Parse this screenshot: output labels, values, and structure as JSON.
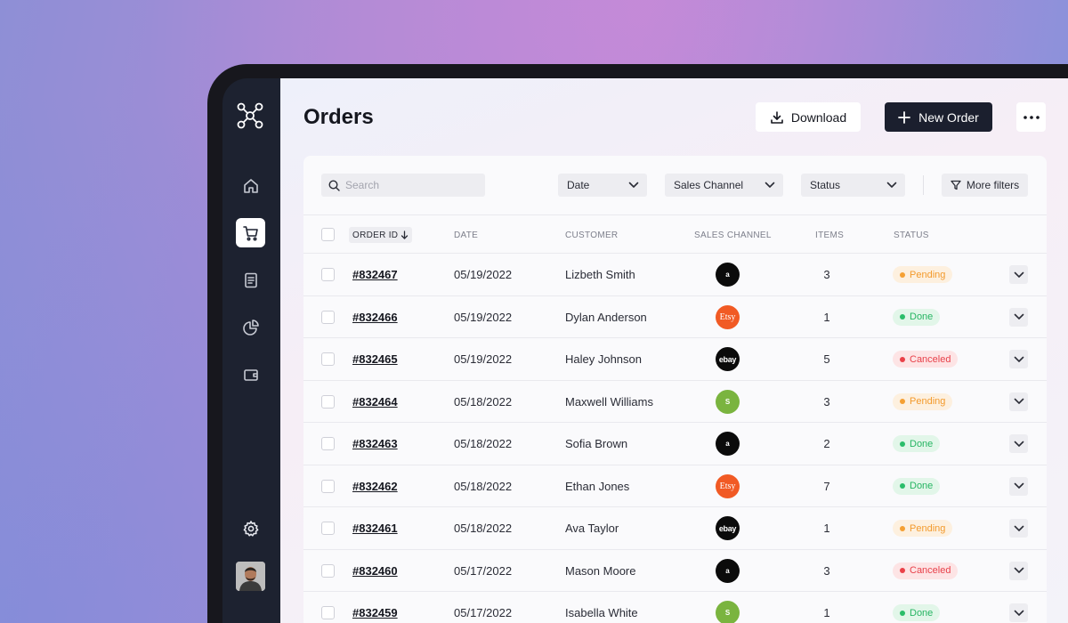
{
  "page": {
    "title": "Orders"
  },
  "actions": {
    "download_label": "Download",
    "new_order_label": "New Order"
  },
  "filters": {
    "search_placeholder": "Search",
    "date_label": "Date",
    "sales_channel_label": "Sales Channel",
    "status_label": "Status",
    "more_filters_label": "More filters"
  },
  "table": {
    "columns": {
      "order_id": "ORDER ID",
      "date": "DATE",
      "customer": "CUSTOMER",
      "sales_channel": "SALES CHANNEL",
      "items": "ITEMS",
      "status": "STATUS"
    },
    "rows": [
      {
        "order_id": "#832467",
        "date": "05/19/2022",
        "customer": "Lizbeth Smith",
        "channel": "amazon",
        "items": "3",
        "status": "Pending"
      },
      {
        "order_id": "#832466",
        "date": "05/19/2022",
        "customer": "Dylan Anderson",
        "channel": "etsy",
        "items": "1",
        "status": "Done"
      },
      {
        "order_id": "#832465",
        "date": "05/19/2022",
        "customer": "Haley Johnson",
        "channel": "ebay",
        "items": "5",
        "status": "Canceled"
      },
      {
        "order_id": "#832464",
        "date": "05/18/2022",
        "customer": "Maxwell Williams",
        "channel": "shopify",
        "items": "3",
        "status": "Pending"
      },
      {
        "order_id": "#832463",
        "date": "05/18/2022",
        "customer": "Sofia Brown",
        "channel": "amazon",
        "items": "2",
        "status": "Done"
      },
      {
        "order_id": "#832462",
        "date": "05/18/2022",
        "customer": "Ethan Jones",
        "channel": "etsy",
        "items": "7",
        "status": "Done"
      },
      {
        "order_id": "#832461",
        "date": "05/18/2022",
        "customer": "Ava Taylor",
        "channel": "ebay",
        "items": "1",
        "status": "Pending"
      },
      {
        "order_id": "#832460",
        "date": "05/17/2022",
        "customer": "Mason Moore",
        "channel": "amazon",
        "items": "3",
        "status": "Canceled"
      },
      {
        "order_id": "#832459",
        "date": "05/17/2022",
        "customer": "Isabella White",
        "channel": "shopify",
        "items": "1",
        "status": "Done"
      }
    ]
  },
  "channel_logos": {
    "amazon": "a",
    "etsy": "Etsy",
    "ebay": "ebay",
    "shopify": "S"
  },
  "sidebar": {
    "icons": [
      "network-logo-icon",
      "home-icon",
      "cart-icon",
      "receipt-icon",
      "pie-chart-icon",
      "wallet-icon",
      "gear-icon"
    ],
    "active": "cart-icon"
  },
  "colors": {
    "sidebar": "#1d2230",
    "primary_button": "#1b1f2e",
    "pending": "#f39a2c",
    "done": "#27b563",
    "canceled": "#e8414a"
  }
}
